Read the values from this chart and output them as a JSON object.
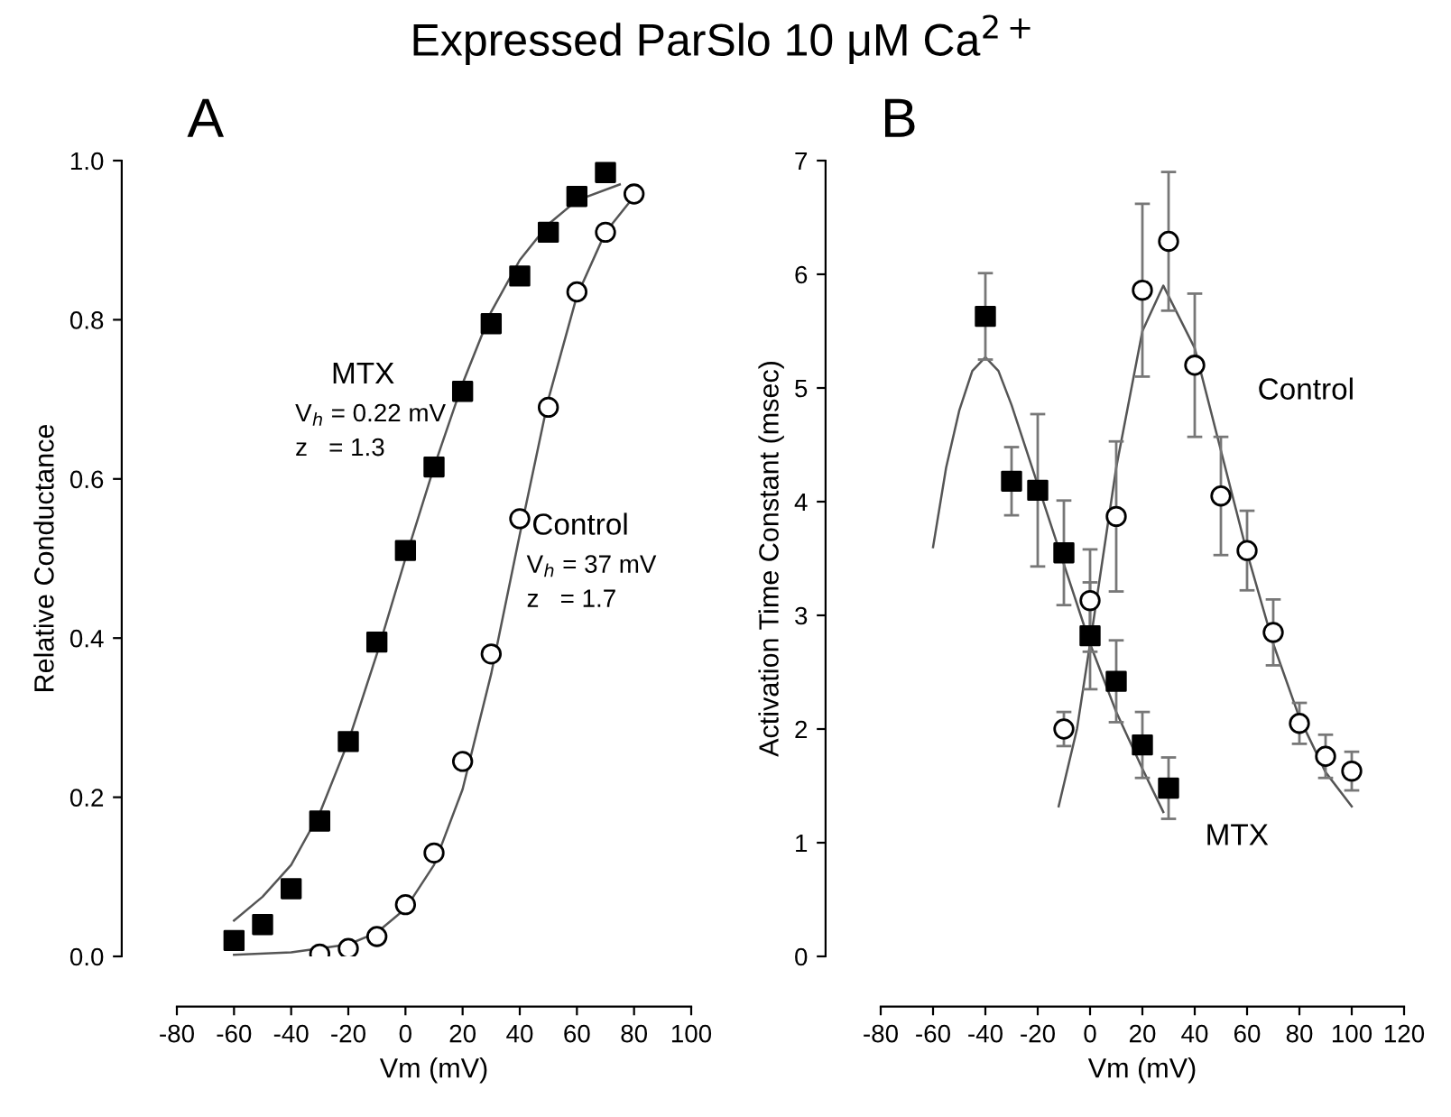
{
  "chart_data": [
    {
      "type": "scatter",
      "title": "Expressed ParSlo 10 μM Ca$^{2+}$",
      "xlabel": "Vm (mV)",
      "ylabel": "Relative Conductance",
      "xlim": [
        -80,
        100
      ],
      "xticks": [
        -80,
        -60,
        -40,
        -20,
        0,
        20,
        40,
        60,
        80,
        100
      ],
      "ylim": [
        0,
        1
      ],
      "yticks": [
        {
          "value": 0,
          "label": "0.0"
        },
        0.2,
        0.4,
        0.6,
        0.8,
        {
          "value": 1,
          "label": "1.0"
        }
      ],
      "grid": false,
      "legend": false,
      "annotations": [
        "A",
        "V$_{h}$ = 0.22 mV\nz   = 1.3",
        "V$_{h}$ = 37 mV\nz   = 1.7"
      ],
      "series": [
        {
          "name": "MTX",
          "marker": "square",
          "color": "#000000",
          "x": [
            -60,
            -50,
            -40,
            -30,
            -20,
            -10,
            0,
            10,
            20,
            30,
            40,
            50,
            60,
            70
          ],
          "values": [
            0.02,
            0.04,
            0.085,
            0.17,
            0.27,
            0.395,
            0.51,
            0.615,
            0.71,
            0.795,
            0.855,
            0.91,
            0.955,
            0.985
          ]
        },
        {
          "name": "Control",
          "marker": "circle",
          "color": "#000000",
          "x": [
            -30,
            -20,
            -10,
            0,
            10,
            20,
            30,
            40,
            50,
            60,
            70,
            80
          ],
          "values": [
            0.003,
            0.01,
            0.025,
            0.065,
            0.13,
            0.245,
            0.38,
            0.55,
            0.69,
            0.835,
            0.91,
            0.958
          ]
        },
        {
          "type": "line",
          "color": "#555555",
          "x": [
            -60,
            -50,
            -40,
            -30,
            -20,
            -10,
            0,
            10,
            20,
            30,
            40,
            50,
            60,
            75
          ],
          "values": [
            0.045,
            0.075,
            0.115,
            0.18,
            0.27,
            0.38,
            0.5,
            0.615,
            0.72,
            0.81,
            0.875,
            0.92,
            0.95,
            0.97
          ]
        },
        {
          "type": "line",
          "color": "#555555",
          "x": [
            -60,
            -40,
            -20,
            -10,
            0,
            10,
            20,
            30,
            40,
            50,
            60,
            70,
            80
          ],
          "values": [
            0.002,
            0.005,
            0.015,
            0.03,
            0.06,
            0.115,
            0.21,
            0.355,
            0.53,
            0.7,
            0.83,
            0.91,
            0.955
          ]
        }
      ]
    },
    {
      "type": "scatter",
      "xlabel": "Vm (mV)",
      "ylabel": "Activation Time Constant (msec)",
      "xlim": [
        -80,
        120
      ],
      "xticks": [
        -80,
        -60,
        -40,
        -20,
        0,
        20,
        40,
        60,
        80,
        100,
        120
      ],
      "ylim": [
        0,
        7
      ],
      "yticks": [
        0,
        1,
        2,
        3,
        4,
        5,
        6,
        7
      ],
      "grid": false,
      "legend": false,
      "annotations": [
        "B"
      ],
      "series": [
        {
          "name": "MTX",
          "marker": "square",
          "color": "#000000",
          "x": [
            -40,
            -30,
            -20,
            -10,
            0,
            10,
            20,
            30
          ],
          "values": [
            5.63,
            4.18,
            4.1,
            3.55,
            2.82,
            2.42,
            1.86,
            1.48
          ],
          "errors": [
            0.38,
            0.3,
            0.67,
            0.46,
            0.47,
            0.36,
            0.29,
            0.27
          ]
        },
        {
          "name": "Control",
          "marker": "circle",
          "color": "#000000",
          "x": [
            -10,
            0,
            10,
            20,
            30,
            40,
            50,
            60,
            70,
            80,
            90,
            100
          ],
          "values": [
            2.0,
            3.13,
            3.87,
            5.86,
            6.29,
            5.2,
            4.05,
            3.57,
            2.85,
            2.05,
            1.76,
            1.63
          ],
          "errors": [
            0.15,
            0.45,
            0.66,
            0.76,
            0.61,
            0.63,
            0.52,
            0.35,
            0.29,
            0.18,
            0.19,
            0.17
          ]
        },
        {
          "type": "line",
          "color": "#555555",
          "x": [
            -60,
            -55,
            -50,
            -45,
            -40,
            -35,
            -30,
            -20,
            -10,
            0,
            10,
            20,
            28
          ],
          "values": [
            3.6,
            4.3,
            4.8,
            5.15,
            5.27,
            5.15,
            4.85,
            4.15,
            3.45,
            2.75,
            2.15,
            1.65,
            1.27
          ]
        },
        {
          "type": "line",
          "color": "#555555",
          "x": [
            -12,
            -5,
            0,
            10,
            20,
            28,
            40,
            50,
            60,
            70,
            80,
            90,
            100
          ],
          "values": [
            1.32,
            2.0,
            2.75,
            4.3,
            5.5,
            5.9,
            5.35,
            4.45,
            3.55,
            2.75,
            2.1,
            1.62,
            1.32
          ]
        }
      ]
    }
  ]
}
